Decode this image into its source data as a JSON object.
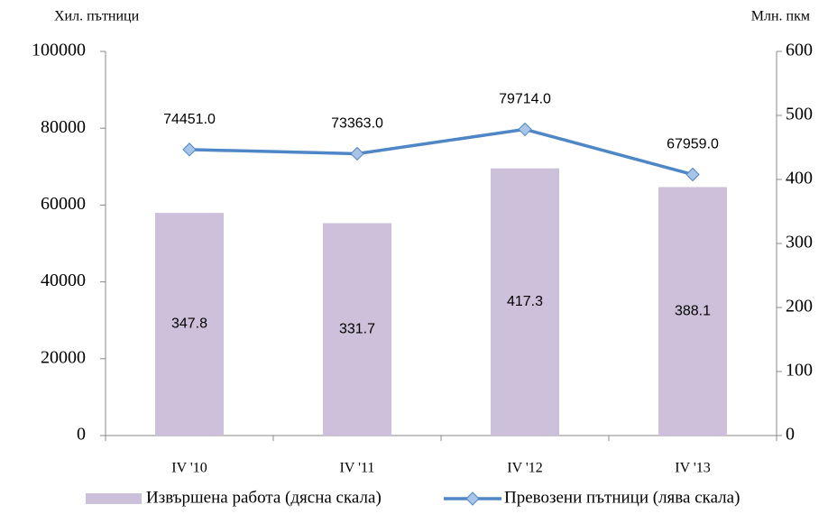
{
  "chart_data": {
    "type": "combo",
    "y_label": "Хил. пътници",
    "y2_label": "Млн. пкм",
    "categories": [
      "IV '10",
      "IV '11",
      "IV '12",
      "IV '13"
    ],
    "ylim": [
      0,
      100000
    ],
    "yticks": [
      0,
      20000,
      40000,
      60000,
      80000,
      100000
    ],
    "y2lim": [
      0,
      600
    ],
    "y2ticks": [
      0,
      100,
      200,
      300,
      400,
      500,
      600
    ],
    "grid": false,
    "series": [
      {
        "name": "Извършена работа (дясна скала)",
        "type": "bar",
        "axis": "y2",
        "color": "#ccc0da",
        "values": [
          347.8,
          331.7,
          417.3,
          388.1
        ]
      },
      {
        "name": "Превозени пътници (лява скала)",
        "type": "line",
        "color": "#4f86c6",
        "marker_color": "#a8c4e6",
        "values": [
          74451,
          73363,
          79714,
          67959
        ],
        "value_labels": [
          "74451.0",
          "73363.0",
          "79714.0",
          "67959.0"
        ]
      }
    ]
  }
}
